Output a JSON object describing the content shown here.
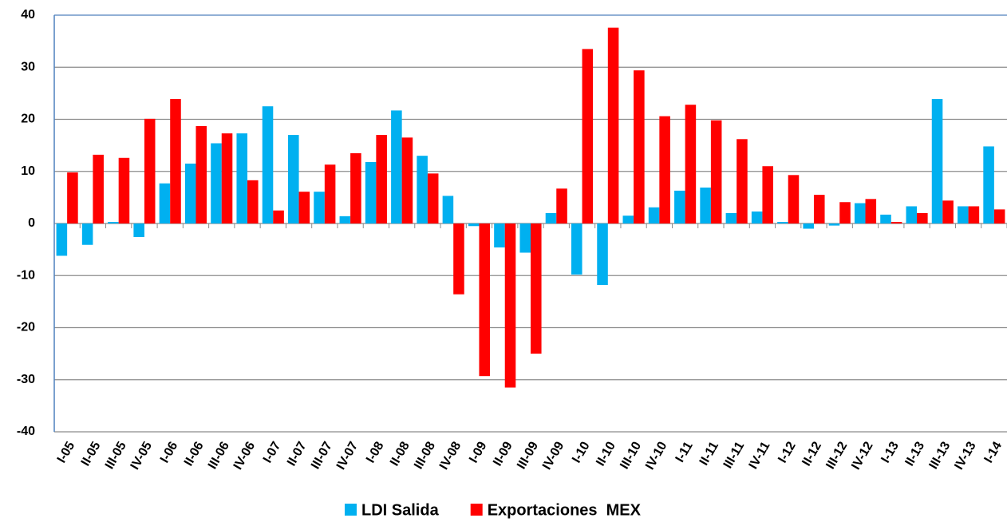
{
  "chart_data": {
    "type": "bar",
    "categories": [
      "I-05",
      "II-05",
      "III-05",
      "IV-05",
      "I-06",
      "II-06",
      "III-06",
      "IV-06",
      "I-07",
      "II-07",
      "III-07",
      "IV-07",
      "I-08",
      "II-08",
      "III-08",
      "IV-08",
      "I-09",
      "II-09",
      "III-09",
      "IV-09",
      "I-10",
      "II-10",
      "III-10",
      "IV-10",
      "I-11",
      "II-11",
      "III-11",
      "IV-11",
      "I-12",
      "II-12",
      "III-12",
      "IV-12",
      "I-13",
      "II-13",
      "III-13",
      "IV-13",
      "I-14"
    ],
    "series": [
      {
        "name": "LDI Salida",
        "color": "#00b0f0",
        "values": [
          -6.2,
          -4.1,
          0.3,
          -2.6,
          7.7,
          11.5,
          15.4,
          17.3,
          22.5,
          17.0,
          6.1,
          1.4,
          11.8,
          21.7,
          13.0,
          5.3,
          -0.5,
          -4.6,
          -5.6,
          2.0,
          -9.8,
          -11.8,
          1.5,
          3.1,
          6.3,
          6.9,
          2.0,
          2.3,
          0.3,
          -1.0,
          -0.4,
          3.9,
          1.7,
          3.3,
          23.9,
          3.3,
          14.8
        ]
      },
      {
        "name": "Exportaciones  MEX",
        "color": "#ff0000",
        "values": [
          9.8,
          13.2,
          12.6,
          20.1,
          23.9,
          18.7,
          17.3,
          8.3,
          2.5,
          6.1,
          11.3,
          13.5,
          17.0,
          16.5,
          9.6,
          -13.6,
          -29.3,
          -31.5,
          -25.0,
          6.7,
          33.5,
          37.6,
          29.4,
          20.6,
          22.8,
          19.8,
          16.2,
          11.0,
          9.3,
          5.5,
          4.1,
          4.7,
          0.3,
          2.0,
          4.4,
          3.3,
          2.7
        ]
      }
    ],
    "ylim": [
      -40,
      40
    ],
    "yticks": [
      -40,
      -30,
      -20,
      -10,
      0,
      10,
      20,
      30,
      40
    ],
    "grid": true,
    "legend": "bottom"
  }
}
